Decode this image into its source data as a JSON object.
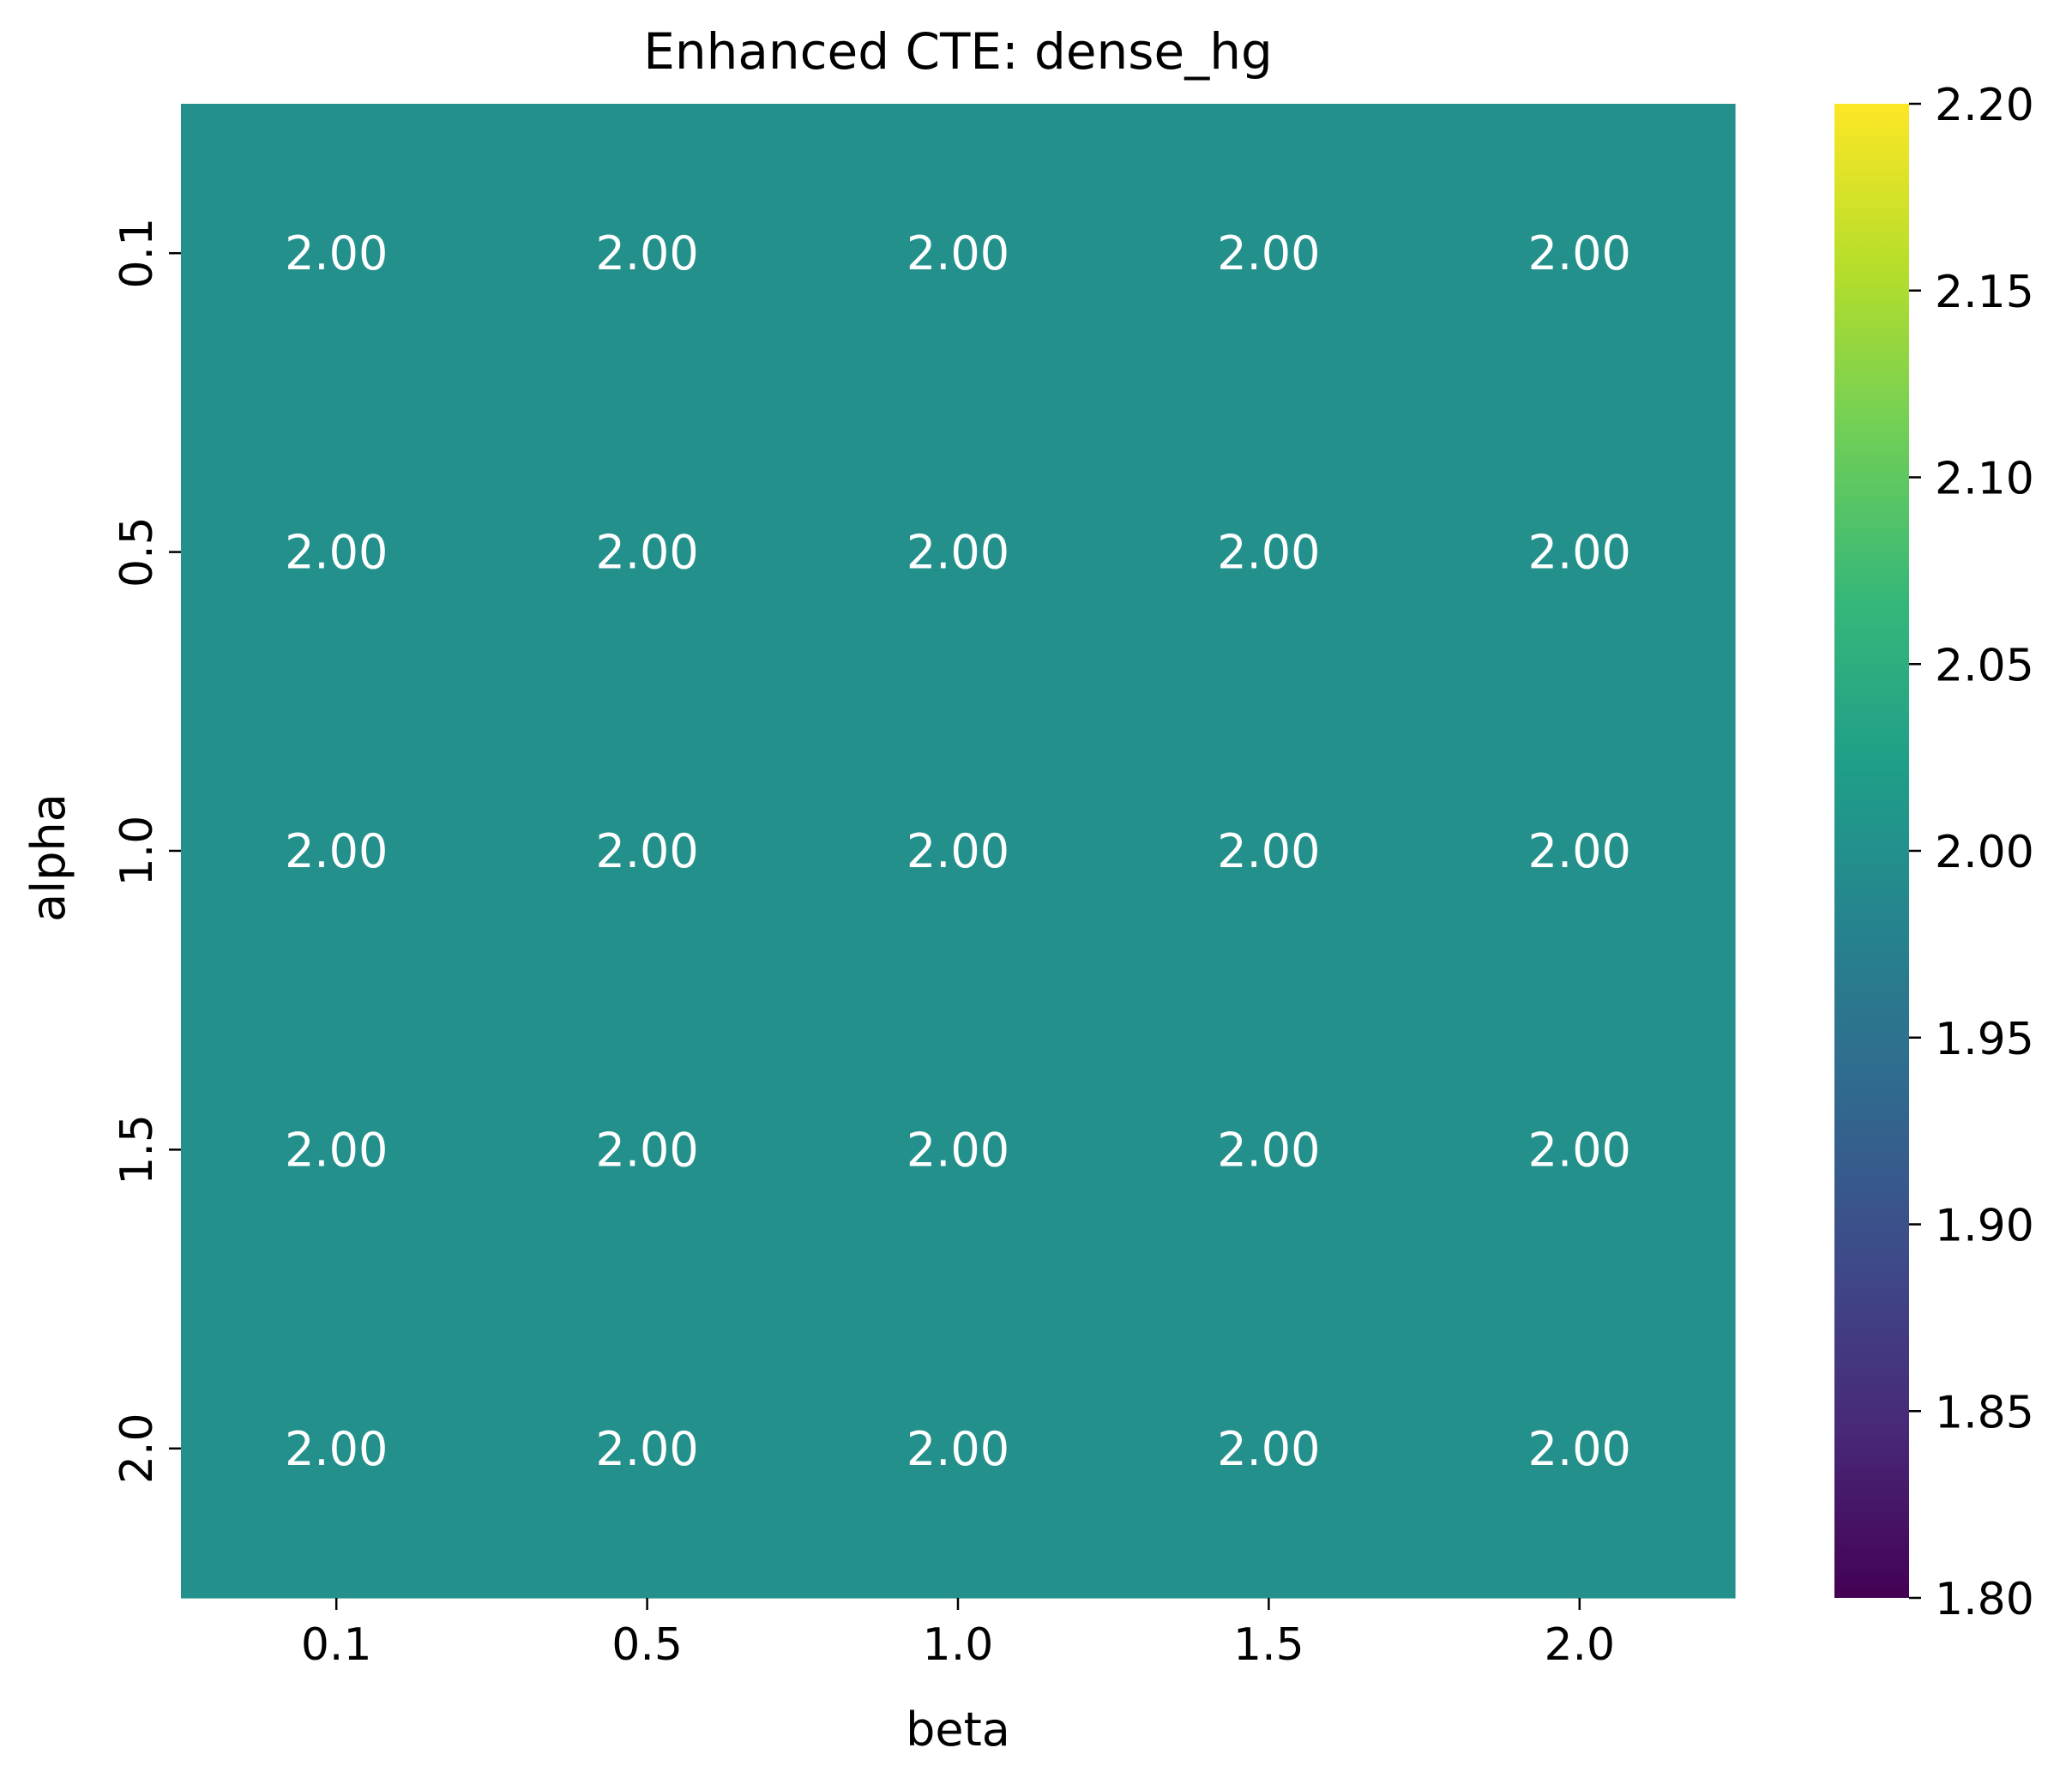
{
  "chart_data": {
    "type": "heatmap",
    "title": "Enhanced CTE: dense_hg",
    "xlabel": "beta",
    "ylabel": "alpha",
    "x_categories": [
      "0.1",
      "0.5",
      "1.0",
      "1.5",
      "2.0"
    ],
    "y_categories": [
      "0.1",
      "0.5",
      "1.0",
      "1.5",
      "2.0"
    ],
    "values": [
      [
        2.0,
        2.0,
        2.0,
        2.0,
        2.0
      ],
      [
        2.0,
        2.0,
        2.0,
        2.0,
        2.0
      ],
      [
        2.0,
        2.0,
        2.0,
        2.0,
        2.0
      ],
      [
        2.0,
        2.0,
        2.0,
        2.0,
        2.0
      ],
      [
        2.0,
        2.0,
        2.0,
        2.0,
        2.0
      ]
    ],
    "value_format_decimals": 2,
    "colormap": "viridis",
    "colorbar": {
      "vmin": 1.8,
      "vmax": 2.2,
      "ticks": [
        "1.80",
        "1.85",
        "1.90",
        "1.95",
        "2.00",
        "2.05",
        "2.10",
        "2.15",
        "2.20"
      ],
      "stops": [
        "#440154",
        "#482878",
        "#3e4989",
        "#31688e",
        "#26828e",
        "#1f9e89",
        "#35b779",
        "#6ece58",
        "#b5de2b",
        "#fde725"
      ]
    },
    "annotation_color": "#ffffff",
    "grid": false
  }
}
